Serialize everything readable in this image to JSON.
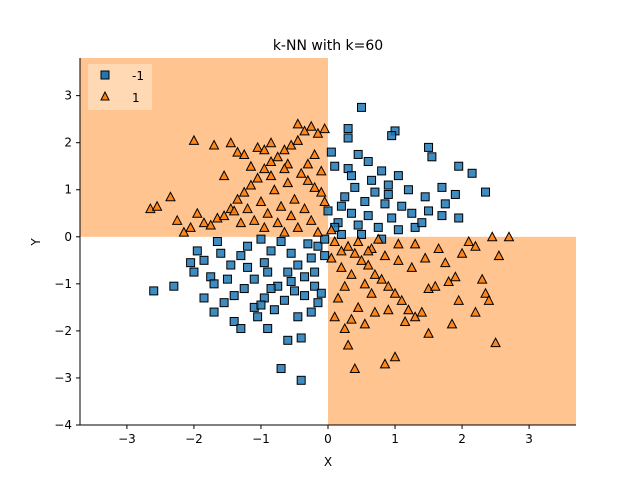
{
  "chart_data": {
    "type": "scatter",
    "title": "k-NN with k=60",
    "xlabel": "X",
    "ylabel": "Y",
    "xlim": [
      -3.7,
      3.7
    ],
    "ylim": [
      -4.0,
      3.8
    ],
    "xticks": [
      -3,
      -2,
      -1,
      0,
      1,
      2,
      3
    ],
    "yticks": [
      -4,
      -3,
      -2,
      -1,
      0,
      1,
      2,
      3
    ],
    "grid": false,
    "legend_position": "top-left",
    "colors": {
      "class_neg_marker": "#1f77b4",
      "class_pos_marker": "#ff7f0e",
      "region_pos": "#ffc48f",
      "region_neg": "#ffffff",
      "marker_edge": "#000000"
    },
    "decision_regions": {
      "description_class": "1",
      "quadrants": [
        {
          "x": [
            -3.7,
            0.0
          ],
          "y": [
            0.0,
            3.8
          ]
        },
        {
          "x": [
            0.0,
            3.7
          ],
          "y": [
            -4.0,
            0.0
          ]
        }
      ]
    },
    "series": [
      {
        "name": "-1",
        "marker": "square",
        "points": [
          [
            0.5,
            2.75
          ],
          [
            1.0,
            2.25
          ],
          [
            0.95,
            2.15
          ],
          [
            0.3,
            2.1
          ],
          [
            0.45,
            1.75
          ],
          [
            1.5,
            1.9
          ],
          [
            1.55,
            1.7
          ],
          [
            1.95,
            1.5
          ],
          [
            2.15,
            1.35
          ],
          [
            2.35,
            0.95
          ],
          [
            1.7,
            1.05
          ],
          [
            1.45,
            0.85
          ],
          [
            1.75,
            0.7
          ],
          [
            1.9,
            0.9
          ],
          [
            1.95,
            0.4
          ],
          [
            1.7,
            0.45
          ],
          [
            1.5,
            0.55
          ],
          [
            0.6,
            1.6
          ],
          [
            0.8,
            1.4
          ],
          [
            1.05,
            1.3
          ],
          [
            0.9,
            1.1
          ],
          [
            0.7,
            0.95
          ],
          [
            0.4,
            1.05
          ],
          [
            0.25,
            0.85
          ],
          [
            0.55,
            0.75
          ],
          [
            0.85,
            0.7
          ],
          [
            1.1,
            0.65
          ],
          [
            1.25,
            0.5
          ],
          [
            0.95,
            0.4
          ],
          [
            0.6,
            0.45
          ],
          [
            0.35,
            0.5
          ],
          [
            0.15,
            0.3
          ],
          [
            0.45,
            0.25
          ],
          [
            0.75,
            0.2
          ],
          [
            1.05,
            0.15
          ],
          [
            1.3,
            0.2
          ],
          [
            0.2,
            0.05
          ],
          [
            0.5,
            0.05
          ],
          [
            0.8,
            -0.05
          ],
          [
            0.1,
            1.5
          ],
          [
            0.05,
            1.8
          ],
          [
            0.3,
            1.45
          ],
          [
            0.65,
            1.2
          ],
          [
            0.2,
            0.65
          ],
          [
            0.0,
            0.55
          ],
          [
            0.1,
            0.2
          ],
          [
            1.2,
            1.0
          ],
          [
            1.4,
            0.3
          ],
          [
            0.3,
            2.3
          ],
          [
            0.35,
            1.3
          ],
          [
            0.9,
            0.9
          ],
          [
            -2.6,
            -1.15
          ],
          [
            -2.3,
            -1.05
          ],
          [
            -2.05,
            -0.55
          ],
          [
            -1.85,
            -0.5
          ],
          [
            -1.75,
            -0.85
          ],
          [
            -1.6,
            -0.35
          ],
          [
            -1.65,
            -0.1
          ],
          [
            -1.45,
            -0.6
          ],
          [
            -1.3,
            -0.4
          ],
          [
            -1.2,
            -0.65
          ],
          [
            -1.1,
            -0.9
          ],
          [
            -0.95,
            -0.55
          ],
          [
            -0.85,
            -0.3
          ],
          [
            -0.7,
            -0.1
          ],
          [
            -0.55,
            -0.35
          ],
          [
            -0.45,
            -0.6
          ],
          [
            -0.35,
            -0.85
          ],
          [
            -0.25,
            -0.45
          ],
          [
            -0.15,
            -0.2
          ],
          [
            -0.05,
            -0.05
          ],
          [
            -0.3,
            -0.15
          ],
          [
            -0.6,
            -0.75
          ],
          [
            -0.75,
            -1.05
          ],
          [
            -0.95,
            -1.3
          ],
          [
            -1.1,
            -1.5
          ],
          [
            -1.25,
            -1.1
          ],
          [
            -1.4,
            -1.25
          ],
          [
            -1.5,
            -0.9
          ],
          [
            -1.85,
            -1.3
          ],
          [
            -1.7,
            -1.6
          ],
          [
            -1.4,
            -1.8
          ],
          [
            -1.3,
            -1.95
          ],
          [
            -1.0,
            -1.45
          ],
          [
            -0.8,
            -1.55
          ],
          [
            -0.65,
            -1.35
          ],
          [
            -0.5,
            -1.15
          ],
          [
            -0.35,
            -1.25
          ],
          [
            -0.2,
            -1.05
          ],
          [
            -0.1,
            -1.2
          ],
          [
            -0.45,
            -1.7
          ],
          [
            -0.6,
            -2.2
          ],
          [
            -0.4,
            -2.15
          ],
          [
            -0.7,
            -2.8
          ],
          [
            -0.4,
            -3.05
          ],
          [
            -0.9,
            -1.95
          ],
          [
            -0.25,
            -1.6
          ],
          [
            -1.55,
            -1.4
          ],
          [
            -2.0,
            -0.75
          ],
          [
            -1.95,
            -0.3
          ],
          [
            -1.2,
            -0.2
          ],
          [
            -1.0,
            -0.05
          ],
          [
            -0.9,
            -0.75
          ],
          [
            -0.55,
            -0.95
          ],
          [
            -0.2,
            -0.75
          ],
          [
            -0.05,
            -0.4
          ],
          [
            -1.7,
            -1.0
          ],
          [
            -0.15,
            -1.4
          ],
          [
            -1.05,
            -1.7
          ],
          [
            -0.85,
            -1.1
          ]
        ]
      },
      {
        "name": "1",
        "marker": "triangle",
        "points": [
          [
            -2.65,
            0.6
          ],
          [
            -2.55,
            0.65
          ],
          [
            -2.35,
            0.85
          ],
          [
            -2.25,
            0.35
          ],
          [
            -2.15,
            0.1
          ],
          [
            -2.05,
            0.2
          ],
          [
            -1.95,
            0.5
          ],
          [
            -1.85,
            0.3
          ],
          [
            -1.75,
            0.25
          ],
          [
            -1.65,
            0.4
          ],
          [
            -1.55,
            0.45
          ],
          [
            -1.45,
            0.6
          ],
          [
            -1.35,
            0.8
          ],
          [
            -1.25,
            0.95
          ],
          [
            -1.15,
            1.1
          ],
          [
            -1.05,
            1.25
          ],
          [
            -0.95,
            1.45
          ],
          [
            -0.85,
            1.6
          ],
          [
            -0.75,
            1.7
          ],
          [
            -0.65,
            1.85
          ],
          [
            -0.55,
            1.95
          ],
          [
            -0.45,
            2.05
          ],
          [
            -0.35,
            2.25
          ],
          [
            -0.25,
            2.35
          ],
          [
            -0.15,
            2.2
          ],
          [
            -0.05,
            2.3
          ],
          [
            -0.45,
            2.4
          ],
          [
            -2.0,
            2.05
          ],
          [
            -1.7,
            1.95
          ],
          [
            -1.45,
            2.0
          ],
          [
            -1.35,
            1.8
          ],
          [
            -1.25,
            1.75
          ],
          [
            -1.05,
            1.9
          ],
          [
            -0.95,
            1.85
          ],
          [
            -0.85,
            2.0
          ],
          [
            -0.6,
            1.55
          ],
          [
            -0.4,
            1.35
          ],
          [
            -0.3,
            1.2
          ],
          [
            -0.2,
            1.05
          ],
          [
            -0.1,
            0.95
          ],
          [
            -0.6,
            1.15
          ],
          [
            -0.8,
            1.0
          ],
          [
            -1.0,
            0.75
          ],
          [
            -1.2,
            0.6
          ],
          [
            -1.4,
            0.55
          ],
          [
            -0.5,
            0.8
          ],
          [
            -0.7,
            0.65
          ],
          [
            -0.9,
            0.5
          ],
          [
            -1.1,
            0.35
          ],
          [
            -1.3,
            0.3
          ],
          [
            -0.35,
            0.6
          ],
          [
            -0.55,
            0.45
          ],
          [
            -0.75,
            0.3
          ],
          [
            -0.95,
            0.2
          ],
          [
            -0.25,
            0.35
          ],
          [
            -0.45,
            0.2
          ],
          [
            -0.65,
            0.1
          ],
          [
            -0.15,
            0.1
          ],
          [
            -0.05,
            0.75
          ],
          [
            -0.1,
            1.4
          ],
          [
            -0.3,
            1.55
          ],
          [
            -0.2,
            1.75
          ],
          [
            -0.65,
            1.45
          ],
          [
            -1.55,
            1.3
          ],
          [
            -1.15,
            1.5
          ],
          [
            -0.85,
            1.3
          ],
          [
            0.05,
            0.15
          ],
          [
            0.1,
            -0.1
          ],
          [
            0.2,
            -0.3
          ],
          [
            0.3,
            -0.2
          ],
          [
            0.4,
            -0.35
          ],
          [
            0.5,
            -0.5
          ],
          [
            0.6,
            -0.6
          ],
          [
            0.7,
            -0.8
          ],
          [
            0.8,
            -0.9
          ],
          [
            0.9,
            -1.05
          ],
          [
            1.0,
            -1.2
          ],
          [
            1.1,
            -1.35
          ],
          [
            1.2,
            -1.55
          ],
          [
            1.3,
            -1.7
          ],
          [
            1.4,
            -1.6
          ],
          [
            1.5,
            -1.1
          ],
          [
            1.6,
            -1.05
          ],
          [
            1.8,
            -0.95
          ],
          [
            1.9,
            -0.85
          ],
          [
            2.0,
            -0.35
          ],
          [
            2.1,
            -0.1
          ],
          [
            2.2,
            -0.2
          ],
          [
            2.3,
            -0.9
          ],
          [
            2.45,
            0.0
          ],
          [
            2.55,
            -0.4
          ],
          [
            2.7,
            0.0
          ],
          [
            2.35,
            -1.2
          ],
          [
            2.4,
            -1.35
          ],
          [
            2.2,
            -1.6
          ],
          [
            2.5,
            -2.25
          ],
          [
            1.95,
            -1.35
          ],
          [
            1.0,
            -2.55
          ],
          [
            0.85,
            -2.7
          ],
          [
            1.5,
            -2.05
          ],
          [
            1.15,
            -1.8
          ],
          [
            0.9,
            -1.55
          ],
          [
            0.7,
            -1.6
          ],
          [
            0.45,
            -1.5
          ],
          [
            0.35,
            -1.75
          ],
          [
            0.25,
            -1.95
          ],
          [
            0.1,
            -1.7
          ],
          [
            0.3,
            -2.3
          ],
          [
            0.4,
            -2.8
          ],
          [
            0.55,
            -1.85
          ],
          [
            0.65,
            -1.2
          ],
          [
            0.55,
            -1.0
          ],
          [
            0.35,
            -0.8
          ],
          [
            0.2,
            -0.65
          ],
          [
            0.45,
            -0.1
          ],
          [
            0.65,
            -0.25
          ],
          [
            0.85,
            -0.4
          ],
          [
            1.05,
            -0.5
          ],
          [
            1.25,
            -0.65
          ],
          [
            1.45,
            -0.45
          ],
          [
            1.65,
            -0.25
          ],
          [
            1.75,
            -0.55
          ],
          [
            1.05,
            -0.15
          ],
          [
            1.3,
            -0.15
          ],
          [
            0.75,
            -0.05
          ],
          [
            0.15,
            -1.3
          ],
          [
            0.25,
            -1.05
          ],
          [
            1.85,
            -1.85
          ],
          [
            0.05,
            -0.45
          ],
          [
            0.6,
            -0.3
          ]
        ]
      }
    ]
  }
}
